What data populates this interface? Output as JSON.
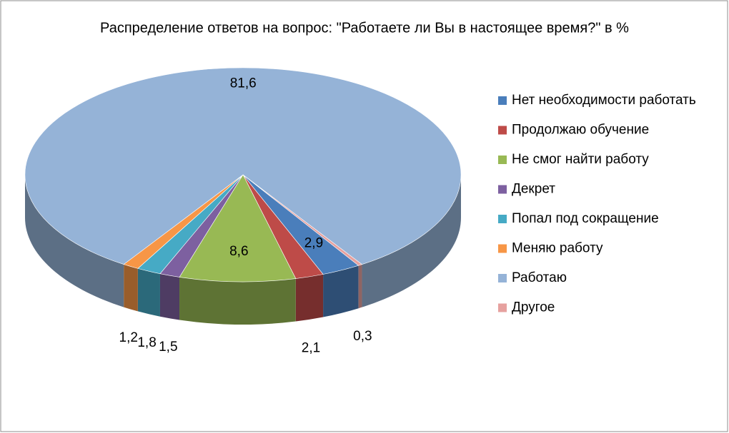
{
  "chart_data": {
    "type": "pie3d",
    "title": "Распределение ответов на вопрос:  \"Работаете ли Вы в настоящее время?\" в %",
    "categories": [
      "Нет необходимости работать",
      "Продолжаю обучение",
      "Не смог найти работу",
      "Декрет",
      "Попал под сокращение",
      "Меняю работу",
      "Работаю",
      "Другое"
    ],
    "values": [
      2.9,
      2.1,
      8.6,
      1.5,
      1.8,
      1.2,
      81.6,
      0.3
    ],
    "value_labels": [
      "2,9",
      "2,1",
      "8,6",
      "1,5",
      "1,8",
      "1,2",
      "81,6",
      "0,3"
    ],
    "colors": [
      "#4a7ebb",
      "#be4b48",
      "#98b954",
      "#7d60a0",
      "#46aac5",
      "#f79646",
      "#95b3d7",
      "#e6a19f"
    ],
    "legend": "right"
  }
}
